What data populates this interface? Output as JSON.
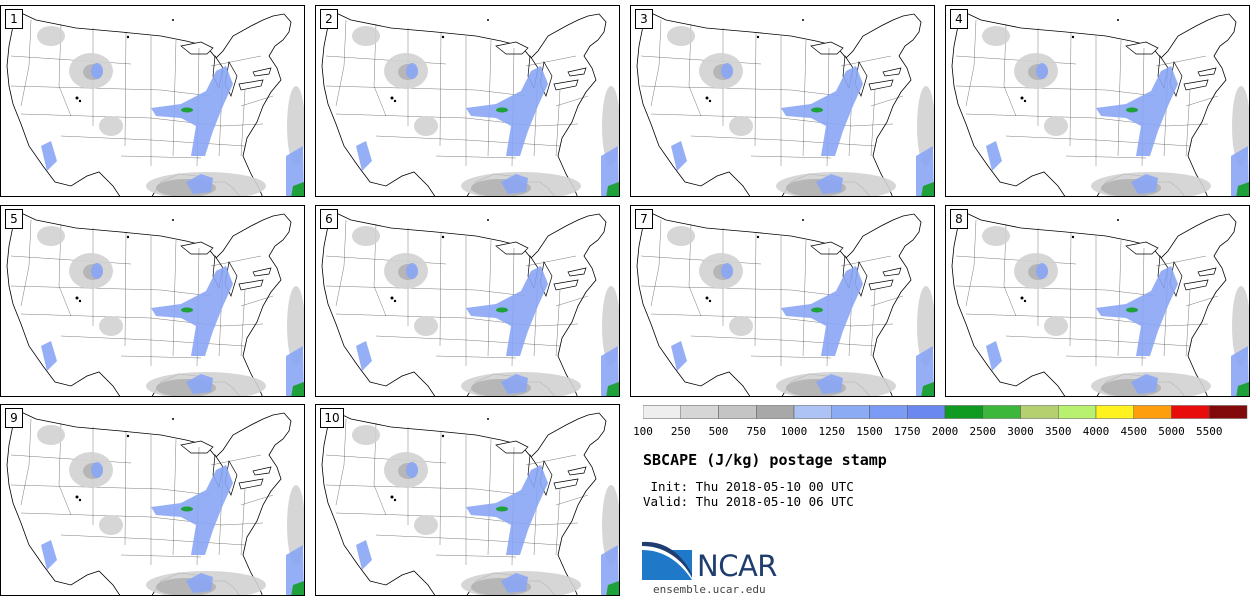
{
  "panels": [
    "1",
    "2",
    "3",
    "4",
    "5",
    "6",
    "7",
    "8",
    "9",
    "10"
  ],
  "colorbar": {
    "ticks": [
      "100",
      "250",
      "500",
      "750",
      "1000",
      "1250",
      "1500",
      "1750",
      "2000",
      "2500",
      "3000",
      "3500",
      "4000",
      "4500",
      "5000",
      "5500"
    ],
    "colors": [
      "#eeeeee",
      "#d6d6d6",
      "#c4c4c4",
      "#a8a8a8",
      "#adc3f5",
      "#8cabf5",
      "#7c9bf4",
      "#6a88f0",
      "#0f9b22",
      "#3cb73c",
      "#b5d06e",
      "#b8f070",
      "#fff21e",
      "#ff9e0d",
      "#e80c0c",
      "#820a0a"
    ]
  },
  "title": "SBCAPE (J/kg) postage stamp",
  "init_line": " Init: Thu 2018-05-10 00 UTC",
  "valid_line": "Valid: Thu 2018-05-10 06 UTC",
  "logo": {
    "text": "NCAR",
    "site": "ensemble.ucar.edu"
  }
}
